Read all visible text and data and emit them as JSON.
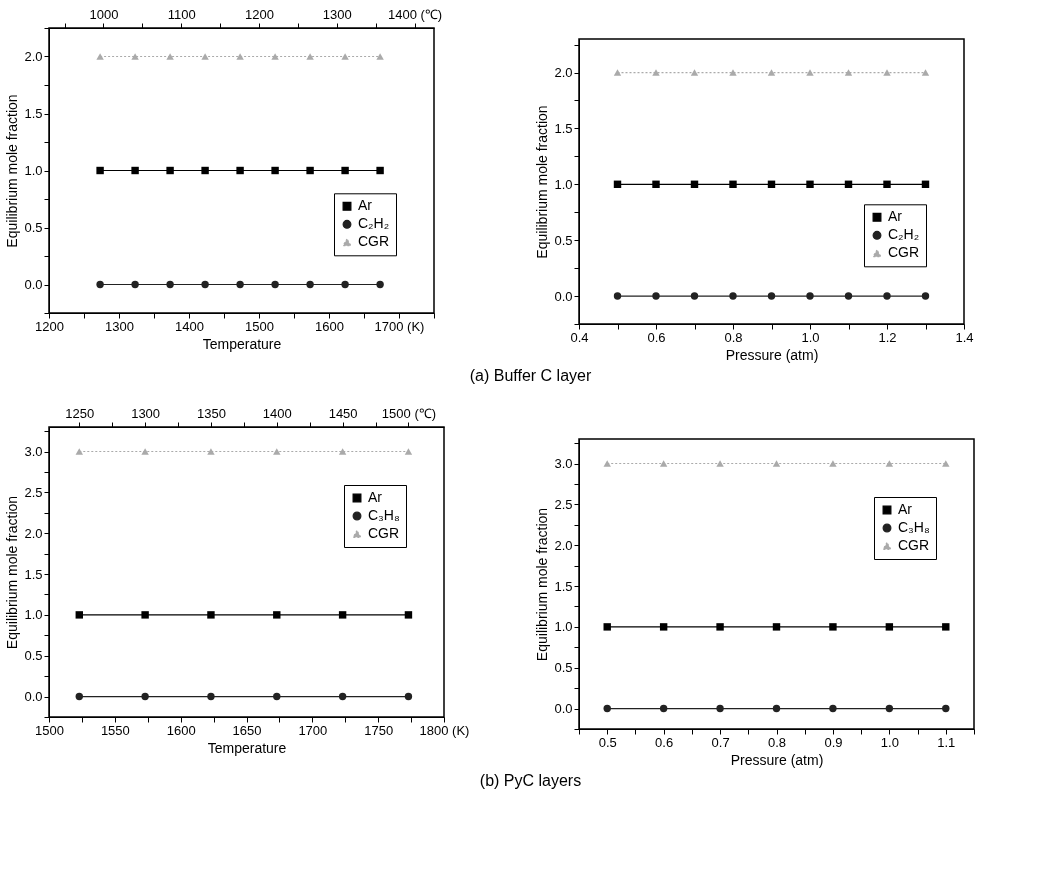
{
  "chart_data": [
    {
      "type": "line",
      "xlabel": "Temperature",
      "ylabel": "Equilibrium mole fraction",
      "x": [
        1273,
        1323,
        1373,
        1423,
        1473,
        1523,
        1573,
        1623,
        1673
      ],
      "series": [
        {
          "name": "Ar",
          "color": "#000000",
          "marker": "square",
          "line_style": "solid",
          "values": [
            1,
            1,
            1,
            1,
            1,
            1,
            1,
            1,
            1
          ]
        },
        {
          "name": "C₂H₂",
          "color": "#222222",
          "marker": "circle",
          "line_style": "solid",
          "values": [
            0,
            0,
            0,
            0,
            0,
            0,
            0,
            0,
            0
          ]
        },
        {
          "name": "CGR",
          "color": "#aaaaaa",
          "marker": "triangle",
          "line_style": "dotted",
          "values": [
            2,
            2,
            2,
            2,
            2,
            2,
            2,
            2,
            2
          ]
        }
      ],
      "xlim": [
        1200,
        1750
      ],
      "xticks": [
        1200,
        {
          "value": 1250,
          "label": null
        },
        1300,
        {
          "value": 1350,
          "label": null
        },
        1400,
        {
          "value": 1450,
          "label": null
        },
        1500,
        {
          "value": 1550,
          "label": null
        },
        1600,
        {
          "value": 1650,
          "label": null
        },
        {
          "value": 1700,
          "label": "1700 (K)"
        },
        {
          "value": 1750,
          "label": null
        }
      ],
      "x2lim": [
        930,
        1425
      ],
      "x2ticks": [
        {
          "value": 950,
          "label": null
        },
        1000,
        {
          "value": 1050,
          "label": null
        },
        1100,
        {
          "value": 1150,
          "label": null
        },
        1200,
        {
          "value": 1250,
          "label": null
        },
        1300,
        {
          "value": 1350,
          "label": null
        },
        {
          "value": 1400,
          "label": "1400 (℃)"
        }
      ],
      "ylim": [
        -0.25,
        2.25
      ],
      "yticks": [
        {
          "value": -0.25,
          "label": null
        },
        {
          "value": 0,
          "label": "0.0"
        },
        {
          "value": 0.25,
          "label": null
        },
        {
          "value": 0.5,
          "label": "0.5"
        },
        {
          "value": 0.75,
          "label": null
        },
        {
          "value": 1,
          "label": "1.0"
        },
        {
          "value": 1.25,
          "label": null
        },
        {
          "value": 1.5,
          "label": "1.5"
        },
        {
          "value": 1.75,
          "label": null
        },
        {
          "value": 2,
          "label": "2.0"
        },
        {
          "value": 2.25,
          "label": null
        }
      ],
      "legend": "right",
      "annotations": [
        "(a) Buffer C layer"
      ]
    },
    {
      "type": "line",
      "xlabel": "Pressure (atm)",
      "ylabel": "Equilibrium mole fraction",
      "x": [
        0.5,
        0.6,
        0.7,
        0.8,
        0.9,
        1.0,
        1.1,
        1.2,
        1.3
      ],
      "series": [
        {
          "name": "Ar",
          "color": "#000000",
          "marker": "square",
          "line_style": "solid",
          "values": [
            1,
            1,
            1,
            1,
            1,
            1,
            1,
            1,
            1
          ]
        },
        {
          "name": "C₂H₂",
          "color": "#222222",
          "marker": "circle",
          "line_style": "solid",
          "values": [
            0,
            0,
            0,
            0,
            0,
            0,
            0,
            0,
            0
          ]
        },
        {
          "name": "CGR",
          "color": "#aaaaaa",
          "marker": "triangle",
          "line_style": "dotted",
          "values": [
            2,
            2,
            2,
            2,
            2,
            2,
            2,
            2,
            2
          ]
        }
      ],
      "xlim": [
        0.4,
        1.4
      ],
      "xticks": [
        0.4,
        {
          "value": 0.5,
          "label": null
        },
        0.6,
        {
          "value": 0.7,
          "label": null
        },
        0.8,
        {
          "value": 0.9,
          "label": null
        },
        {
          "value": 1,
          "label": "1.0"
        },
        {
          "value": 1.1,
          "label": null
        },
        1.2,
        {
          "value": 1.3,
          "label": null
        },
        1.4
      ],
      "ylim": [
        -0.25,
        2.3
      ],
      "yticks": [
        {
          "value": -0.25,
          "label": null
        },
        {
          "value": 0,
          "label": "0.0"
        },
        {
          "value": 0.25,
          "label": null
        },
        {
          "value": 0.5,
          "label": "0.5"
        },
        {
          "value": 0.75,
          "label": null
        },
        {
          "value": 1,
          "label": "1.0"
        },
        {
          "value": 1.25,
          "label": null
        },
        {
          "value": 1.5,
          "label": "1.5"
        },
        {
          "value": 1.75,
          "label": null
        },
        {
          "value": 2,
          "label": "2.0"
        },
        {
          "value": 2.25,
          "label": null
        }
      ],
      "legend": "right"
    },
    {
      "type": "line",
      "xlabel": "Temperature",
      "ylabel": "Equilibrium mole fraction",
      "x": [
        1523,
        1573,
        1623,
        1673,
        1723,
        1773
      ],
      "series": [
        {
          "name": "Ar",
          "color": "#000000",
          "marker": "square",
          "line_style": "solid",
          "values": [
            1,
            1,
            1,
            1,
            1,
            1
          ]
        },
        {
          "name": "C₃H₈",
          "color": "#222222",
          "marker": "circle",
          "line_style": "solid",
          "values": [
            0,
            0,
            0,
            0,
            0,
            0
          ]
        },
        {
          "name": "CGR",
          "color": "#aaaaaa",
          "marker": "triangle",
          "line_style": "dotted",
          "values": [
            3,
            3,
            3,
            3,
            3,
            3
          ]
        }
      ],
      "xlim": [
        1500,
        1800
      ],
      "xticks": [
        1500,
        {
          "value": 1525,
          "label": null
        },
        1550,
        {
          "value": 1575,
          "label": null
        },
        1600,
        {
          "value": 1625,
          "label": null
        },
        1650,
        {
          "value": 1675,
          "label": null
        },
        1700,
        {
          "value": 1725,
          "label": null
        },
        1750,
        {
          "value": 1775,
          "label": null
        },
        {
          "value": 1800,
          "label": "1800 (K)"
        }
      ],
      "x2lim": [
        1227,
        1527
      ],
      "x2ticks": [
        1250,
        {
          "value": 1275,
          "label": null
        },
        1300,
        {
          "value": 1325,
          "label": null
        },
        1350,
        {
          "value": 1375,
          "label": null
        },
        1400,
        {
          "value": 1425,
          "label": null
        },
        1450,
        {
          "value": 1475,
          "label": null
        },
        {
          "value": 1500,
          "label": "1500 (℃)"
        }
      ],
      "ylim": [
        -0.25,
        3.3
      ],
      "yticks": [
        {
          "value": -0.25,
          "label": null
        },
        {
          "value": 0,
          "label": "0.0"
        },
        {
          "value": 0.25,
          "label": null
        },
        {
          "value": 0.5,
          "label": "0.5"
        },
        {
          "value": 0.75,
          "label": null
        },
        {
          "value": 1,
          "label": "1.0"
        },
        {
          "value": 1.25,
          "label": null
        },
        {
          "value": 1.5,
          "label": "1.5"
        },
        {
          "value": 1.75,
          "label": null
        },
        {
          "value": 2,
          "label": "2.0"
        },
        {
          "value": 2.25,
          "label": null
        },
        {
          "value": 2.5,
          "label": "2.5"
        },
        {
          "value": 2.75,
          "label": null
        },
        {
          "value": 3,
          "label": "3.0"
        },
        {
          "value": 3.25,
          "label": null
        }
      ],
      "legend": "right",
      "annotations": [
        "(b) PyC layers"
      ]
    },
    {
      "type": "line",
      "xlabel": "Pressure (atm)",
      "ylabel": "Equilibrium mole fraction",
      "x": [
        0.5,
        0.6,
        0.7,
        0.8,
        0.9,
        1.0,
        1.1
      ],
      "series": [
        {
          "name": "Ar",
          "color": "#000000",
          "marker": "square",
          "line_style": "solid",
          "values": [
            1,
            1,
            1,
            1,
            1,
            1,
            1
          ]
        },
        {
          "name": "C₃H₈",
          "color": "#222222",
          "marker": "circle",
          "line_style": "solid",
          "values": [
            0,
            0,
            0,
            0,
            0,
            0,
            0
          ]
        },
        {
          "name": "CGR",
          "color": "#aaaaaa",
          "marker": "triangle",
          "line_style": "dotted",
          "values": [
            3,
            3,
            3,
            3,
            3,
            3,
            3
          ]
        }
      ],
      "xlim": [
        0.45,
        1.15
      ],
      "xticks": [
        {
          "value": 0.45,
          "label": null
        },
        0.5,
        {
          "value": 0.55,
          "label": null
        },
        0.6,
        {
          "value": 0.65,
          "label": null
        },
        0.7,
        {
          "value": 0.75,
          "label": null
        },
        0.8,
        {
          "value": 0.85,
          "label": null
        },
        0.9,
        {
          "value": 0.95,
          "label": null
        },
        {
          "value": 1,
          "label": "1.0"
        },
        {
          "value": 1.05,
          "label": null
        },
        1.1,
        {
          "value": 1.15,
          "label": null
        }
      ],
      "ylim": [
        -0.25,
        3.3
      ],
      "yticks": [
        {
          "value": -0.25,
          "label": null
        },
        {
          "value": 0,
          "label": "0.0"
        },
        {
          "value": 0.25,
          "label": null
        },
        {
          "value": 0.5,
          "label": "0.5"
        },
        {
          "value": 0.75,
          "label": null
        },
        {
          "value": 1,
          "label": "1.0"
        },
        {
          "value": 1.25,
          "label": null
        },
        {
          "value": 1.5,
          "label": "1.5"
        },
        {
          "value": 1.75,
          "label": null
        },
        {
          "value": 2,
          "label": "2.0"
        },
        {
          "value": 2.25,
          "label": null
        },
        {
          "value": 2.5,
          "label": "2.5"
        },
        {
          "value": 2.75,
          "label": null
        },
        {
          "value": 3,
          "label": "3.0"
        },
        {
          "value": 3.25,
          "label": null
        }
      ],
      "legend": "right"
    }
  ]
}
